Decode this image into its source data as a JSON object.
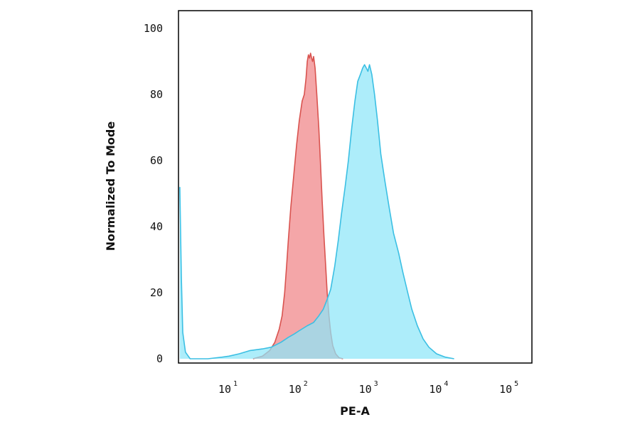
{
  "chart_data": {
    "type": "area",
    "xlabel": "PE-A",
    "ylabel": "Normalized To Mode",
    "xscale": "log",
    "xlim": [
      2,
      100000
    ],
    "ylim": [
      0,
      100
    ],
    "grid": false,
    "legend": "none",
    "x_ticks": [
      {
        "base": "10",
        "exp": "1",
        "value": 10
      },
      {
        "base": "10",
        "exp": "2",
        "value": 100
      },
      {
        "base": "10",
        "exp": "3",
        "value": 1000
      },
      {
        "base": "10",
        "exp": "4",
        "value": 10000
      },
      {
        "base": "10",
        "exp": "5",
        "value": 100000
      }
    ],
    "y_ticks": [
      "0",
      "20",
      "40",
      "60",
      "80",
      "100"
    ],
    "series": [
      {
        "color_fill": "#f4a6a8",
        "color_line": "#d9534f",
        "points": [
          [
            22,
            0
          ],
          [
            30,
            0.8
          ],
          [
            38,
            2.5
          ],
          [
            45,
            5
          ],
          [
            52,
            9
          ],
          [
            57,
            13
          ],
          [
            62,
            20
          ],
          [
            66,
            28
          ],
          [
            70,
            36
          ],
          [
            76,
            46
          ],
          [
            84,
            56
          ],
          [
            92,
            65
          ],
          [
            100,
            72
          ],
          [
            110,
            78
          ],
          [
            118,
            80
          ],
          [
            125,
            85
          ],
          [
            130,
            90
          ],
          [
            135,
            92
          ],
          [
            140,
            91
          ],
          [
            145,
            92.5
          ],
          [
            150,
            91
          ],
          [
            155,
            90
          ],
          [
            160,
            91.5
          ],
          [
            168,
            88
          ],
          [
            178,
            80
          ],
          [
            190,
            70
          ],
          [
            200,
            60
          ],
          [
            212,
            48
          ],
          [
            225,
            37
          ],
          [
            238,
            28
          ],
          [
            250,
            20
          ],
          [
            265,
            13
          ],
          [
            280,
            8
          ],
          [
            300,
            4
          ],
          [
            330,
            1.5
          ],
          [
            370,
            0.3
          ],
          [
            420,
            0
          ]
        ]
      },
      {
        "color_fill": "#8ee6f8",
        "color_line": "#3bbfe3",
        "points": [
          [
            2,
            52
          ],
          [
            2.1,
            25
          ],
          [
            2.2,
            8
          ],
          [
            2.4,
            2
          ],
          [
            2.8,
            0
          ],
          [
            5,
            0
          ],
          [
            8,
            0.5
          ],
          [
            10,
            0.8
          ],
          [
            14,
            1.5
          ],
          [
            20,
            2.5
          ],
          [
            30,
            3
          ],
          [
            40,
            3.5
          ],
          [
            55,
            5
          ],
          [
            70,
            6.5
          ],
          [
            85,
            7.5
          ],
          [
            100,
            8.5
          ],
          [
            130,
            10
          ],
          [
            160,
            11
          ],
          [
            190,
            13
          ],
          [
            220,
            15
          ],
          [
            250,
            18
          ],
          [
            280,
            21
          ],
          [
            320,
            28
          ],
          [
            360,
            36
          ],
          [
            400,
            44
          ],
          [
            450,
            52
          ],
          [
            500,
            60
          ],
          [
            560,
            70
          ],
          [
            620,
            78
          ],
          [
            680,
            84
          ],
          [
            740,
            86
          ],
          [
            800,
            88
          ],
          [
            850,
            89
          ],
          [
            900,
            88
          ],
          [
            950,
            87
          ],
          [
            1000,
            89
          ],
          [
            1080,
            86
          ],
          [
            1180,
            80
          ],
          [
            1300,
            72
          ],
          [
            1450,
            62
          ],
          [
            1650,
            54
          ],
          [
            1900,
            46
          ],
          [
            2200,
            38
          ],
          [
            2600,
            32
          ],
          [
            3000,
            26
          ],
          [
            3500,
            20
          ],
          [
            4000,
            15
          ],
          [
            4800,
            10
          ],
          [
            5800,
            6
          ],
          [
            7000,
            3.5
          ],
          [
            9000,
            1.5
          ],
          [
            12000,
            0.5
          ],
          [
            16000,
            0
          ]
        ]
      }
    ]
  }
}
